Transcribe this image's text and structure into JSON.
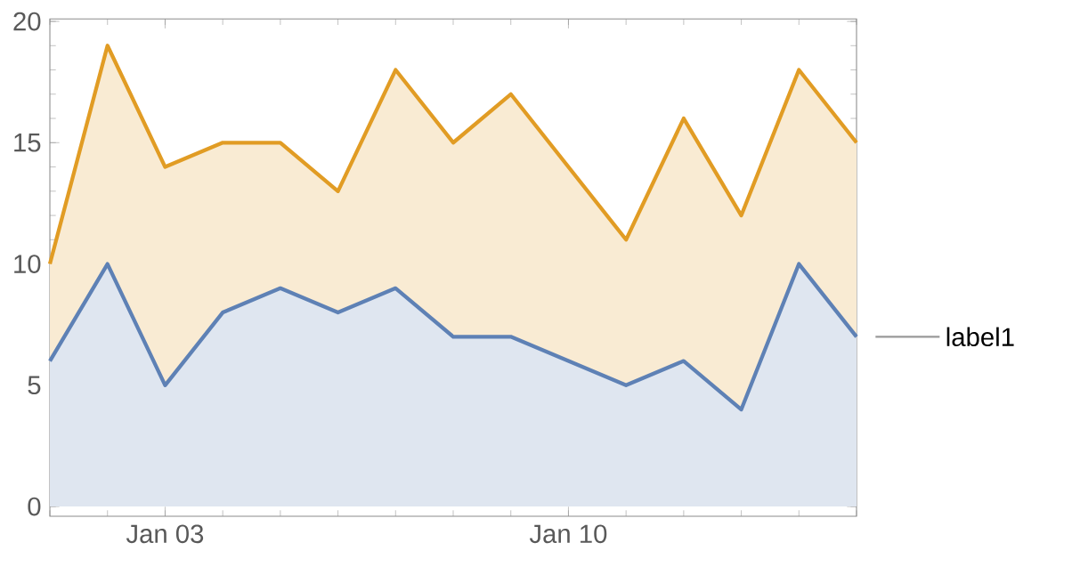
{
  "chart_data": {
    "type": "area",
    "x": [
      "--01-01",
      "--01-02",
      "--01-03",
      "--01-04",
      "--01-05",
      "--01-06",
      "--01-07",
      "--01-08",
      "--01-09",
      "--01-11",
      "--01-12",
      "--01-13",
      "--01-14",
      "--01-15"
    ],
    "series": [
      {
        "name": "label1",
        "color": "#5e81b5",
        "values": [
          6,
          10,
          5,
          8,
          9,
          8,
          9,
          7,
          7,
          5,
          6,
          4,
          10,
          7
        ]
      },
      {
        "color": "#e19c24",
        "values": [
          10,
          19,
          14,
          15,
          15,
          13,
          18,
          15,
          17,
          11,
          16,
          12,
          18,
          15
        ]
      }
    ],
    "xlim": [
      "--01-01",
      "--01-15"
    ],
    "xticks": [
      {
        "value": "--01-03",
        "label": "Jan 03"
      },
      {
        "value": "--01-10",
        "label": "Jan 10"
      }
    ],
    "ylim": [
      -0.4,
      20.1
    ],
    "yticks": [
      0,
      5,
      10,
      15,
      20
    ],
    "grid": false,
    "marker": "none",
    "line_style": "solid"
  }
}
